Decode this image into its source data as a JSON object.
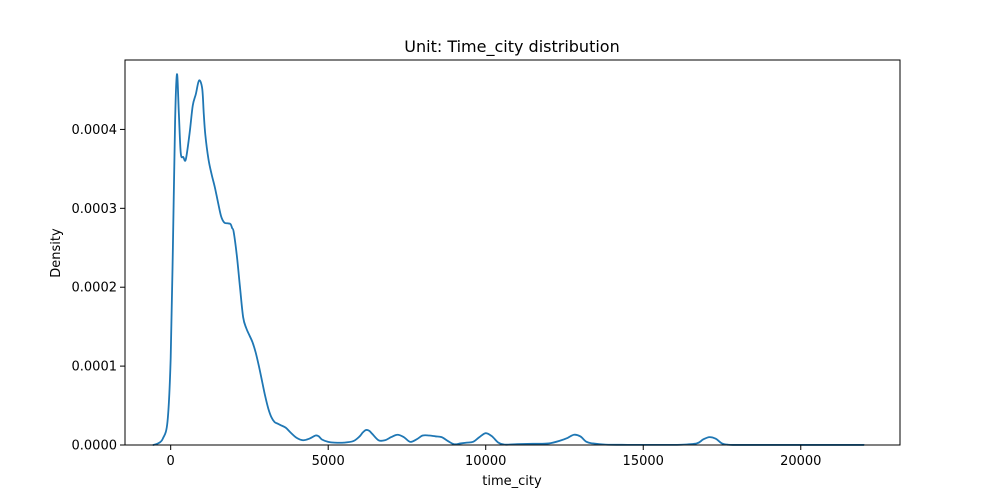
{
  "chart_data": {
    "type": "line",
    "title": "Unit: Time_city distribution",
    "xlabel": "time_city",
    "ylabel": "Density",
    "xlim": [
      -1450,
      23150
    ],
    "ylim": [
      0,
      0.000488
    ],
    "xticks": [
      0,
      5000,
      10000,
      15000,
      20000
    ],
    "xtick_labels": [
      "0",
      "5000",
      "10000",
      "15000",
      "20000"
    ],
    "yticks": [
      0,
      0.0001,
      0.0002,
      0.0003,
      0.0004
    ],
    "ytick_labels": [
      "0.0000",
      "0.0001",
      "0.0002",
      "0.0003",
      "0.0004"
    ],
    "grid": false,
    "legend": "none",
    "series": [
      {
        "color": "#1f77b4",
        "x": [
          -550,
          -400,
          -250,
          -100,
          0,
          70,
          140,
          200,
          260,
          320,
          400,
          480,
          600,
          700,
          800,
          900,
          1000,
          1050,
          1100,
          1200,
          1300,
          1400,
          1500,
          1600,
          1700,
          1800,
          1900,
          1950,
          2000,
          2100,
          2200,
          2300,
          2400,
          2500,
          2600,
          2700,
          2800,
          2900,
          3000,
          3100,
          3200,
          3300,
          3400,
          3500,
          3650,
          3800,
          4000,
          4200,
          4400,
          4600,
          4700,
          4800,
          5000,
          5200,
          5500,
          5800,
          6000,
          6100,
          6200,
          6300,
          6400,
          6600,
          6800,
          7000,
          7200,
          7400,
          7600,
          7800,
          8000,
          8200,
          8400,
          8600,
          8800,
          9000,
          9200,
          9400,
          9600,
          9800,
          10000,
          10200,
          10400,
          10600,
          11000,
          11500,
          12000,
          12400,
          12600,
          12800,
          13000,
          13200,
          13400,
          13800,
          14500,
          15500,
          16200,
          16700,
          16900,
          17100,
          17300,
          17500,
          17700,
          18000,
          19000,
          20000,
          21000,
          22000
        ],
        "y": [
          0,
          2e-06,
          8e-06,
          3e-05,
          0.00011,
          0.00025,
          0.00041,
          0.00047,
          0.00042,
          0.00037,
          0.000365,
          0.000362,
          0.000395,
          0.00043,
          0.000445,
          0.000462,
          0.000452,
          0.00042,
          0.000393,
          0.000362,
          0.000343,
          0.000327,
          0.000308,
          0.00029,
          0.000282,
          0.000281,
          0.00028,
          0.000275,
          0.00027,
          0.00024,
          0.0002,
          0.000162,
          0.000148,
          0.000139,
          0.00013,
          0.000117,
          0.0001,
          8.1e-05,
          6.2e-05,
          4.6e-05,
          3.5e-05,
          2.9e-05,
          2.7e-05,
          2.5e-05,
          2.2e-05,
          1.6e-05,
          9e-06,
          6e-06,
          8e-06,
          1.2e-05,
          1.1e-05,
          7e-06,
          4e-06,
          3e-06,
          3e-06,
          5e-06,
          1.1e-05,
          1.6e-05,
          1.9e-05,
          1.8e-05,
          1.4e-05,
          6e-06,
          6e-06,
          1e-05,
          1.3e-05,
          1e-05,
          4e-06,
          7e-06,
          1.2e-05,
          1.2e-05,
          1.1e-05,
          1e-05,
          5e-06,
          1e-06,
          2e-06,
          3e-06,
          4e-06,
          1e-05,
          1.5e-05,
          1.1e-05,
          3e-06,
          5e-07,
          1e-06,
          1.5e-06,
          2e-06,
          6e-06,
          9e-06,
          1.3e-05,
          1.1e-05,
          4e-06,
          2e-06,
          5e-07,
          2e-07,
          2e-07,
          3e-07,
          2e-06,
          7e-06,
          1e-05,
          8e-06,
          2e-06,
          3e-07,
          1e-07,
          1e-07,
          1e-07,
          1e-07,
          1e-07
        ]
      }
    ]
  }
}
